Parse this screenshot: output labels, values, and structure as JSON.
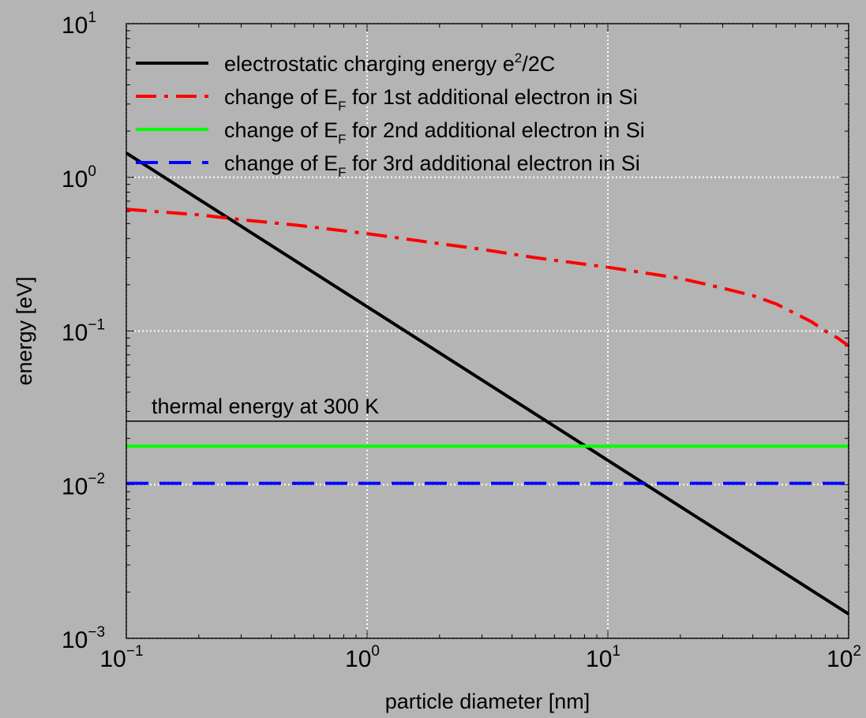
{
  "chart_data": {
    "type": "line",
    "xscale": "log",
    "yscale": "log",
    "xlim": [
      0.1,
      100
    ],
    "ylim": [
      0.001,
      10
    ],
    "xlabel": "particle diameter [nm]",
    "ylabel": "energy [eV]",
    "grid": true,
    "legend_position": "top-left",
    "x_ticks": [
      {
        "base": "10",
        "exp": "−1"
      },
      {
        "base": "10",
        "exp": "0"
      },
      {
        "base": "10",
        "exp": "1"
      },
      {
        "base": "10",
        "exp": "2"
      }
    ],
    "y_ticks": [
      {
        "base": "10",
        "exp": "−3"
      },
      {
        "base": "10",
        "exp": "−2"
      },
      {
        "base": "10",
        "exp": "−1"
      },
      {
        "base": "10",
        "exp": "0"
      },
      {
        "base": "10",
        "exp": "1"
      }
    ],
    "series": [
      {
        "legend": {
          "pre": "electrostatic charging energy e",
          "sup": "2",
          "post": "/2C"
        },
        "color": "#000000",
        "style": "solid",
        "x": [
          0.1,
          100
        ],
        "y": [
          1.44,
          0.00144
        ]
      },
      {
        "legend": {
          "pre": "change of E",
          "sub": "F",
          "post": " for 1st additional electron in Si"
        },
        "color": "#ff0000",
        "style": "dashdot",
        "x": [
          0.1,
          0.2,
          0.3,
          0.5,
          1,
          2,
          3,
          5,
          10,
          20,
          30,
          40,
          50,
          60,
          70,
          80,
          90,
          100
        ],
        "y": [
          0.62,
          0.57,
          0.53,
          0.49,
          0.43,
          0.37,
          0.34,
          0.3,
          0.26,
          0.22,
          0.19,
          0.17,
          0.15,
          0.13,
          0.115,
          0.1,
          0.09,
          0.08
        ]
      },
      {
        "legend": {
          "pre": "change of E",
          "sub": "F",
          "post": " for 2nd additional electron in Si"
        },
        "color": "#00ff00",
        "style": "solid",
        "x": [
          0.1,
          100
        ],
        "y": [
          0.0178,
          0.0178
        ]
      },
      {
        "legend": {
          "pre": "change of E",
          "sub": "F",
          "post": " for 3rd additional electron in Si"
        },
        "color": "#0000ff",
        "style": "dashed",
        "x": [
          0.1,
          100
        ],
        "y": [
          0.0102,
          0.0102
        ]
      }
    ],
    "annotations": [
      {
        "text": "thermal energy at 300 K",
        "y": 0.0259,
        "color": "#000000"
      }
    ]
  }
}
